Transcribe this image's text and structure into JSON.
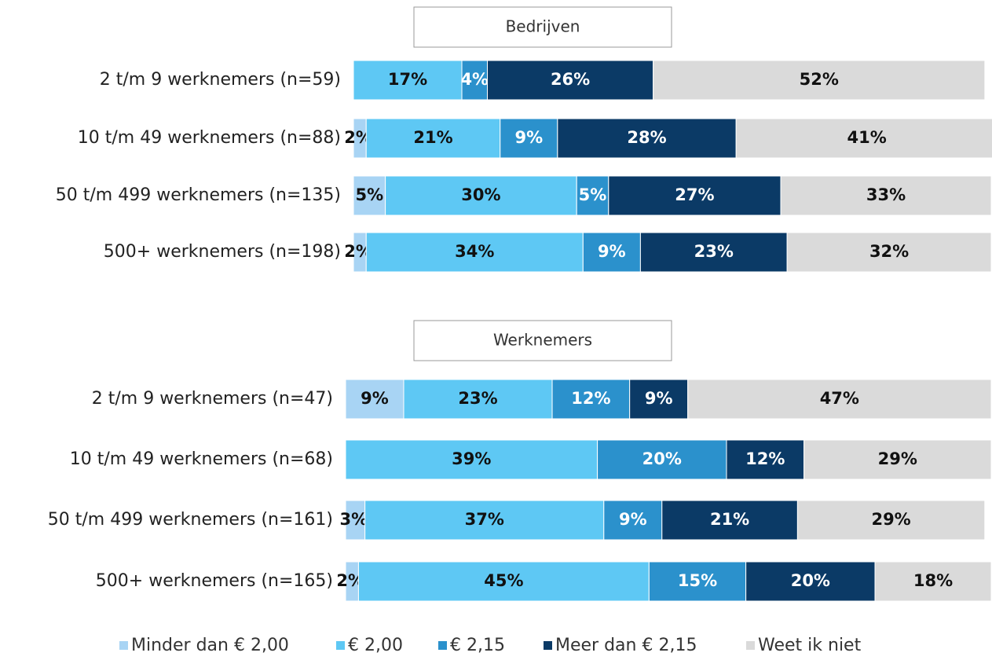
{
  "chart_data": [
    {
      "type": "stacked-bar-horizontal",
      "title": "Bedrijven",
      "categories": [
        "2 t/m 9 werknemers  (n=59)",
        "10 t/m 49 werknemers  (n=88)",
        "50 t/m 499 werknemers  (n=135)",
        "500+ werknemers  (n=198)"
      ],
      "xlim": [
        0,
        100
      ],
      "series": [
        {
          "name": "Minder dan € 2,00",
          "color": "#a8d4f4",
          "values": [
            0,
            2,
            5,
            2
          ],
          "value_labels": [
            null,
            "2%",
            "5%",
            "2%"
          ]
        },
        {
          "name": "€ 2,00",
          "color": "#5ec8f4",
          "values": [
            17,
            21,
            30,
            34
          ],
          "value_labels": [
            "17%",
            "21%",
            "30%",
            "34%"
          ]
        },
        {
          "name": "€ 2,15",
          "color": "#2b91cc",
          "values": [
            4,
            9,
            5,
            9
          ],
          "value_labels": [
            "4%",
            "9%",
            "5%",
            "9%"
          ]
        },
        {
          "name": "Meer dan € 2,15",
          "color": "#0b3a66",
          "values": [
            26,
            28,
            27,
            23
          ],
          "value_labels": [
            "26%",
            "28%",
            "27%",
            "23%"
          ]
        },
        {
          "name": "Weet ik niet",
          "color": "#dadada",
          "values": [
            52,
            41,
            33,
            32
          ],
          "value_labels": [
            "52%",
            "41%",
            "33%",
            "32%"
          ]
        }
      ]
    },
    {
      "type": "stacked-bar-horizontal",
      "title": "Werknemers",
      "categories": [
        "2 t/m 9 werknemers  (n=47)",
        "10 t/m 49 werknemers  (n=68)",
        "50 t/m 499 werknemers  (n=161)",
        "500+ werknemers  (n=165)"
      ],
      "xlim": [
        0,
        100
      ],
      "series": [
        {
          "name": "Minder dan € 2,00",
          "color": "#a8d4f4",
          "values": [
            9,
            0,
            3,
            2
          ],
          "value_labels": [
            "9%",
            null,
            "3%",
            "2%"
          ]
        },
        {
          "name": "€ 2,00",
          "color": "#5ec8f4",
          "values": [
            23,
            39,
            37,
            45
          ],
          "value_labels": [
            "23%",
            "39%",
            "37%",
            "45%"
          ]
        },
        {
          "name": "€ 2,15",
          "color": "#2b91cc",
          "values": [
            12,
            20,
            9,
            15
          ],
          "value_labels": [
            "12%",
            "20%",
            "9%",
            "15%"
          ]
        },
        {
          "name": "Meer dan € 2,15",
          "color": "#0b3a66",
          "values": [
            9,
            12,
            21,
            20
          ],
          "value_labels": [
            "9%",
            "12%",
            "21%",
            "20%"
          ]
        },
        {
          "name": "Weet ik niet",
          "color": "#dadada",
          "values": [
            47,
            29,
            29,
            18
          ],
          "value_labels": [
            "47%",
            "29%",
            "29%",
            "18%"
          ]
        }
      ]
    }
  ]
}
